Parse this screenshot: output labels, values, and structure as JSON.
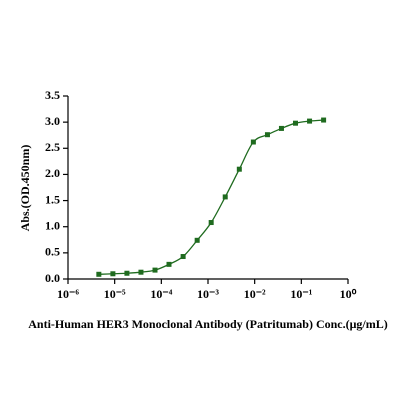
{
  "chart_data": {
    "type": "scatter",
    "x_label": "Anti-Human HER3 Monoclonal Antibody (Patritumab) Conc.(μg/mL)",
    "y_label": "Abs.(OD.450nm)",
    "x_log": true,
    "xlim": [
      1e-06,
      1
    ],
    "xticks": [
      {
        "value": 1e-06,
        "label": "10⁻⁶"
      },
      {
        "value": 1e-05,
        "label": "10⁻⁵"
      },
      {
        "value": 0.0001,
        "label": "10⁻⁴"
      },
      {
        "value": 0.001,
        "label": "10⁻³"
      },
      {
        "value": 0.01,
        "label": "10⁻²"
      },
      {
        "value": 0.1,
        "label": "10⁻¹"
      },
      {
        "value": 1,
        "label": "10⁰"
      }
    ],
    "ylim": [
      0,
      3.5
    ],
    "yticks": [
      {
        "value": 0,
        "label": "0.0"
      },
      {
        "value": 0.5,
        "label": "0.5"
      },
      {
        "value": 1,
        "label": "1.0"
      },
      {
        "value": 1.5,
        "label": "1.5"
      },
      {
        "value": 2,
        "label": "2.0"
      },
      {
        "value": 2.5,
        "label": "2.5"
      },
      {
        "value": 3,
        "label": "3.0"
      },
      {
        "value": 3.5,
        "label": "3.5"
      }
    ],
    "series": [
      {
        "color": "#1f6b1f",
        "x": [
          4.58e-06,
          9.16e-06,
          1.83e-05,
          3.66e-05,
          7.32e-05,
          0.000146,
          0.000293,
          0.000586,
          0.00117,
          0.00234,
          0.00469,
          0.00938,
          0.0188,
          0.0375,
          0.075,
          0.15,
          0.3
        ],
        "values": [
          0.09,
          0.1,
          0.11,
          0.13,
          0.17,
          0.28,
          0.43,
          0.74,
          1.08,
          1.57,
          2.1,
          2.62,
          2.76,
          2.88,
          2.98,
          3.02,
          3.04
        ]
      }
    ]
  }
}
